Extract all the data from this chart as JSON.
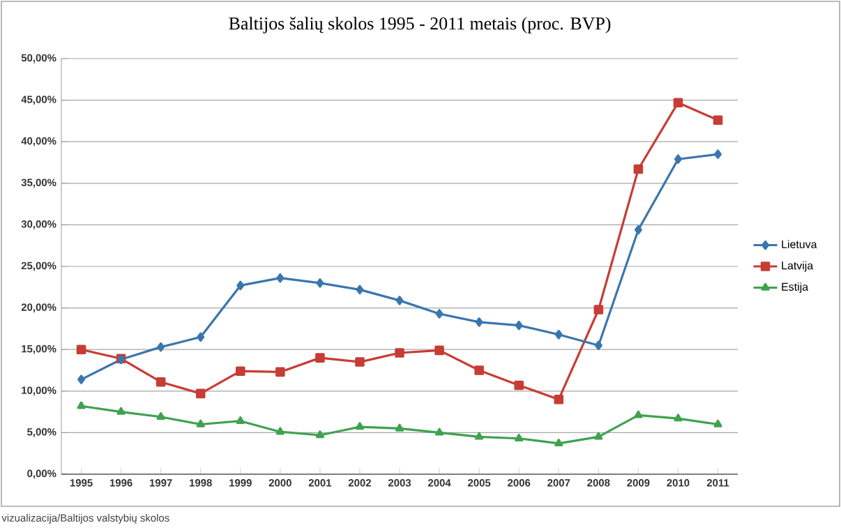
{
  "chart_data": {
    "type": "line",
    "title": "Baltijos šalių skolos 1995 - 2011 metais (proc. BVP)",
    "categories": [
      "1995",
      "1996",
      "1997",
      "1998",
      "1999",
      "2000",
      "2001",
      "2002",
      "2003",
      "2004",
      "2005",
      "2006",
      "2007",
      "2008",
      "2009",
      "2010",
      "2011"
    ],
    "series": [
      {
        "name": "Lietuva",
        "color": "#3a76ae",
        "marker": "diamond",
        "values": [
          11.4,
          13.8,
          15.3,
          16.5,
          22.7,
          23.6,
          23.0,
          22.2,
          20.9,
          19.3,
          18.3,
          17.9,
          16.8,
          15.5,
          29.4,
          37.9,
          38.5
        ]
      },
      {
        "name": "Latvija",
        "color": "#c63d36",
        "marker": "square",
        "values": [
          15.0,
          13.9,
          11.1,
          9.7,
          12.4,
          12.3,
          14.0,
          13.5,
          14.6,
          14.9,
          12.5,
          10.7,
          9.0,
          19.8,
          36.7,
          44.7,
          42.6
        ]
      },
      {
        "name": "Estija",
        "color": "#3fa24f",
        "marker": "triangle",
        "values": [
          8.2,
          7.5,
          6.9,
          6.0,
          6.4,
          5.1,
          4.7,
          5.7,
          5.5,
          5.0,
          4.5,
          4.3,
          3.7,
          4.5,
          7.1,
          6.7,
          6.0
        ]
      }
    ],
    "ylim": [
      0,
      50
    ],
    "yticks": [
      {
        "value": 0,
        "label": "0,00%"
      },
      {
        "value": 5,
        "label": "5,00%"
      },
      {
        "value": 10,
        "label": "10,00%"
      },
      {
        "value": 15,
        "label": "15,00%"
      },
      {
        "value": 20,
        "label": "20,00%"
      },
      {
        "value": 25,
        "label": "25,00%"
      },
      {
        "value": 30,
        "label": "30,00%"
      },
      {
        "value": 35,
        "label": "35,00%"
      },
      {
        "value": 40,
        "label": "40,00%"
      },
      {
        "value": 45,
        "label": "45,00%"
      },
      {
        "value": 50,
        "label": "50,00%"
      }
    ],
    "grid": "y",
    "legend": "right",
    "line_style": "solid",
    "annotations": [
      "vizualizacija/Baltijos valstybių skolos"
    ]
  }
}
